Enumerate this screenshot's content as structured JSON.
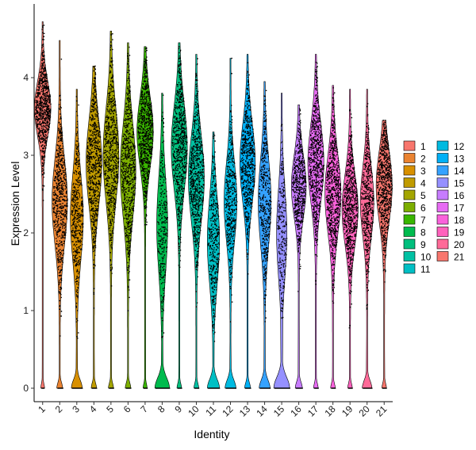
{
  "chart_data": {
    "type": "violin",
    "xlabel": "Identity",
    "ylabel": "Expression Level",
    "ylim": [
      -0.2,
      4.9
    ],
    "yticks": [
      0,
      1,
      2,
      3,
      4
    ],
    "grid": false,
    "legend_position": "right",
    "legend_columns": 2,
    "categories": [
      "1",
      "2",
      "3",
      "4",
      "5",
      "6",
      "7",
      "8",
      "9",
      "10",
      "11",
      "12",
      "13",
      "14",
      "15",
      "16",
      "17",
      "18",
      "19",
      "20",
      "21"
    ],
    "colors": [
      "#F8766D",
      "#EA8331",
      "#D89000",
      "#C09B00",
      "#A3A500",
      "#7CAE00",
      "#39B600",
      "#00BB4E",
      "#00BF7D",
      "#00C1A3",
      "#00BFC4",
      "#00BAE0",
      "#00B0F6",
      "#35A2FF",
      "#9590FF",
      "#C77CFF",
      "#E76BF3",
      "#FA62DB",
      "#FF62BC",
      "#FF6A98",
      "#F8766D"
    ],
    "series": [
      {
        "name": "1",
        "zero_fraction": 0.02,
        "mean": 3.6,
        "sd": 0.35,
        "max": 4.72,
        "min": 0.35
      },
      {
        "name": "2",
        "zero_fraction": 0.1,
        "mean": 2.4,
        "sd": 0.55,
        "max": 4.48,
        "min": 0.15
      },
      {
        "name": "3",
        "zero_fraction": 0.3,
        "mean": 2.2,
        "sd": 0.55,
        "max": 3.85,
        "min": 0.55
      },
      {
        "name": "4",
        "zero_fraction": 0.08,
        "mean": 2.9,
        "sd": 0.55,
        "max": 4.15,
        "min": 0.5
      },
      {
        "name": "5",
        "zero_fraction": 0.07,
        "mean": 3.0,
        "sd": 0.6,
        "max": 4.6,
        "min": 0.3
      },
      {
        "name": "6",
        "zero_fraction": 0.09,
        "mean": 2.8,
        "sd": 0.6,
        "max": 4.45,
        "min": 0.2
      },
      {
        "name": "7",
        "zero_fraction": 0.03,
        "mean": 3.3,
        "sd": 0.45,
        "max": 4.4,
        "min": 0.95
      },
      {
        "name": "8",
        "zero_fraction": 0.45,
        "mean": 2.1,
        "sd": 0.6,
        "max": 3.8,
        "min": 0.6
      },
      {
        "name": "9",
        "zero_fraction": 0.05,
        "mean": 3.1,
        "sd": 0.55,
        "max": 4.45,
        "min": 0.3
      },
      {
        "name": "10",
        "zero_fraction": 0.06,
        "mean": 2.7,
        "sd": 0.55,
        "max": 4.3,
        "min": 0.4
      },
      {
        "name": "11",
        "zero_fraction": 0.35,
        "mean": 1.9,
        "sd": 0.55,
        "max": 3.3,
        "min": 0.55
      },
      {
        "name": "12",
        "zero_fraction": 0.3,
        "mean": 2.4,
        "sd": 0.5,
        "max": 4.25,
        "min": 0.6
      },
      {
        "name": "13",
        "zero_fraction": 0.1,
        "mean": 2.9,
        "sd": 0.5,
        "max": 4.3,
        "min": 0.9
      },
      {
        "name": "14",
        "zero_fraction": 0.3,
        "mean": 2.4,
        "sd": 0.55,
        "max": 3.95,
        "min": 0.8
      },
      {
        "name": "15",
        "zero_fraction": 0.5,
        "mean": 2.0,
        "sd": 0.55,
        "max": 3.8,
        "min": 0.9
      },
      {
        "name": "16",
        "zero_fraction": 0.15,
        "mean": 2.6,
        "sd": 0.4,
        "max": 3.65,
        "min": 0.95
      },
      {
        "name": "17",
        "zero_fraction": 0.05,
        "mean": 2.9,
        "sd": 0.5,
        "max": 4.3,
        "min": 0.5
      },
      {
        "name": "18",
        "zero_fraction": 0.05,
        "mean": 2.5,
        "sd": 0.5,
        "max": 3.9,
        "min": 0.35
      },
      {
        "name": "19",
        "zero_fraction": 0.05,
        "mean": 2.3,
        "sd": 0.45,
        "max": 3.85,
        "min": 0.5
      },
      {
        "name": "20",
        "zero_fraction": 0.25,
        "mean": 2.4,
        "sd": 0.45,
        "max": 3.85,
        "min": 0.7
      },
      {
        "name": "21",
        "zero_fraction": 0.05,
        "mean": 2.6,
        "sd": 0.45,
        "max": 3.45,
        "min": 0.5
      }
    ]
  }
}
